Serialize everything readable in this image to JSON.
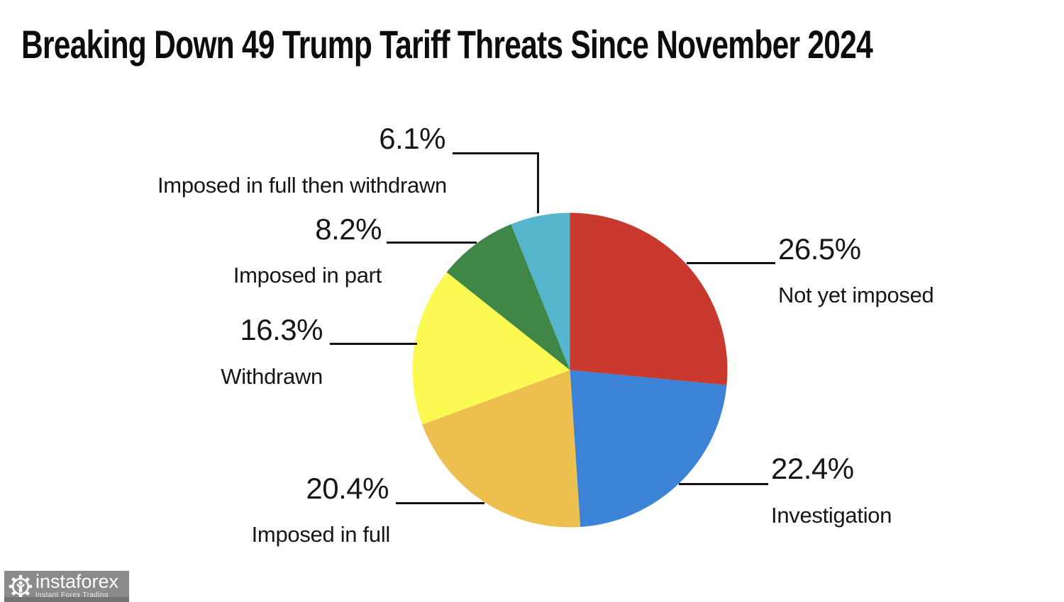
{
  "title": "Breaking Down 49 Trump Tariff Threats Since November 2024",
  "chart_data": {
    "type": "pie",
    "title": "Breaking Down 49 Trump Tariff Threats Since November 2024",
    "total_threats": 49,
    "direction": "clockwise",
    "start_angle_deg": 0,
    "legend_position": "callout-labels",
    "slices": [
      {
        "label": "Not yet imposed",
        "pct_label": "26.5%",
        "value": 26.5,
        "color": "#c9392e"
      },
      {
        "label": "Investigation",
        "pct_label": "22.4%",
        "value": 22.4,
        "color": "#3c82d7"
      },
      {
        "label": "Imposed in full",
        "pct_label": "20.4%",
        "value": 20.4,
        "color": "#edbf4e"
      },
      {
        "label": "Withdrawn",
        "pct_label": "16.3%",
        "value": 16.3,
        "color": "#fcf952"
      },
      {
        "label": "Imposed in part",
        "pct_label": "8.2%",
        "value": 8.2,
        "color": "#3e8746"
      },
      {
        "label": "Imposed in full then withdrawn",
        "pct_label": "6.1%",
        "value": 6.1,
        "color": "#55b5cd"
      }
    ]
  },
  "watermark": {
    "brand": "instaforex",
    "tagline": "Instant Forex Trading"
  }
}
